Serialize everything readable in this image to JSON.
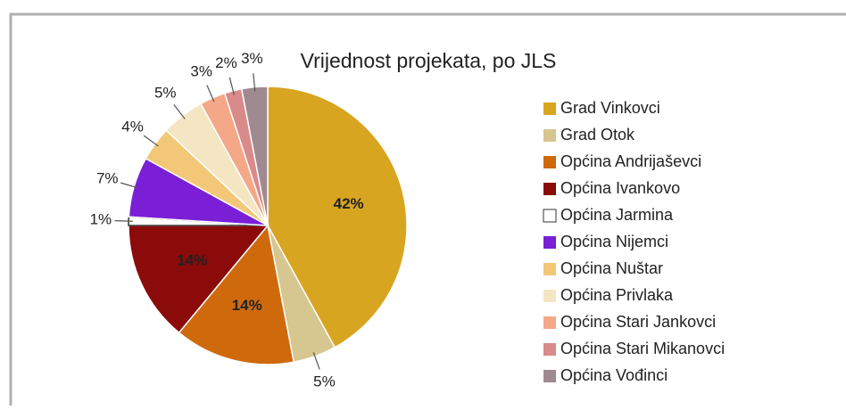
{
  "chart_data": {
    "type": "pie",
    "title": "Vrijednost projekata, po JLS",
    "categories": [
      "Grad Vinkovci",
      "Grad Otok",
      "Općina Andrijaševci",
      "Općina Ivankovo",
      "Općina Jarmina",
      "Općina Nijemci",
      "Općina Nuštar",
      "Općina Privlaka",
      "Općina Stari Jankovci",
      "Općina Stari Mikanovci",
      "Općina Vođinci"
    ],
    "values": [
      42,
      5,
      14,
      14,
      1,
      7,
      4,
      5,
      3,
      2,
      3
    ],
    "value_labels": [
      "42%",
      "5%",
      "14%",
      "14%",
      "1%",
      "7%",
      "4%",
      "5%",
      "3%",
      "2%",
      "3%"
    ],
    "colors": [
      "#d8a520",
      "#d6c690",
      "#cf6a0c",
      "#8b0a0a",
      "#ffffff",
      "#7a1fd6",
      "#f2c878",
      "#f4e6c2",
      "#f4a888",
      "#d98a8a",
      "#9e8a90"
    ],
    "legend": "right"
  }
}
